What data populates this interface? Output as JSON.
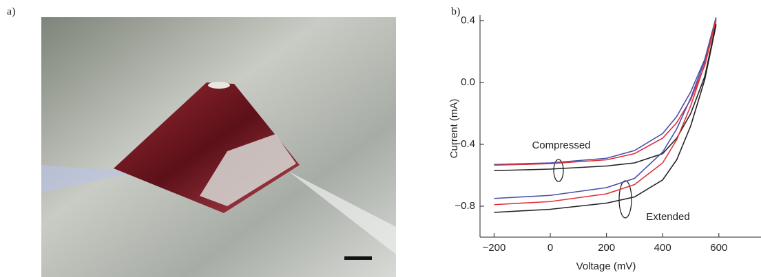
{
  "panel_a": {
    "label": "a)"
  },
  "chart_data": {
    "type": "line",
    "panel_label": "b)",
    "xlabel": "Voltage (mV)",
    "ylabel": "Current (mA)",
    "x": [
      -200,
      0,
      200,
      300,
      400,
      450,
      500,
      550,
      590
    ],
    "series": [
      {
        "name": "Compressed blue",
        "color": "#4a4fa8",
        "values": [
          -0.53,
          -0.52,
          -0.49,
          -0.44,
          -0.33,
          -0.22,
          -0.06,
          0.15,
          0.42
        ]
      },
      {
        "name": "Compressed red",
        "color": "#e0303a",
        "values": [
          -0.535,
          -0.525,
          -0.5,
          -0.46,
          -0.36,
          -0.26,
          -0.11,
          0.11,
          0.4
        ]
      },
      {
        "name": "Compressed black",
        "color": "#222222",
        "values": [
          -0.57,
          -0.56,
          -0.54,
          -0.52,
          -0.46,
          -0.36,
          -0.2,
          0.04,
          0.38
        ]
      },
      {
        "name": "Extended blue",
        "color": "#4a4fa8",
        "values": [
          -0.75,
          -0.73,
          -0.68,
          -0.62,
          -0.45,
          -0.3,
          -0.1,
          0.14,
          0.42
        ]
      },
      {
        "name": "Extended red",
        "color": "#e0303a",
        "values": [
          -0.79,
          -0.77,
          -0.72,
          -0.66,
          -0.52,
          -0.37,
          -0.15,
          0.12,
          0.41
        ]
      },
      {
        "name": "Extended black",
        "color": "#222222",
        "values": [
          -0.84,
          -0.82,
          -0.78,
          -0.74,
          -0.63,
          -0.5,
          -0.28,
          0.02,
          0.37
        ]
      }
    ],
    "xlim": [
      -250,
      750
    ],
    "ylim": [
      -1.0,
      0.4
    ],
    "xticks": [
      {
        "value": -200,
        "label": "−200"
      },
      0,
      200,
      400,
      600
    ],
    "yticks": [
      0.4,
      {
        "value": 0,
        "label": "0.0"
      },
      {
        "value": -0.4,
        "label": "−0.4"
      },
      {
        "value": -0.8,
        "label": "−0.8"
      }
    ],
    "annotations": [
      "Compressed",
      "Extended"
    ]
  }
}
